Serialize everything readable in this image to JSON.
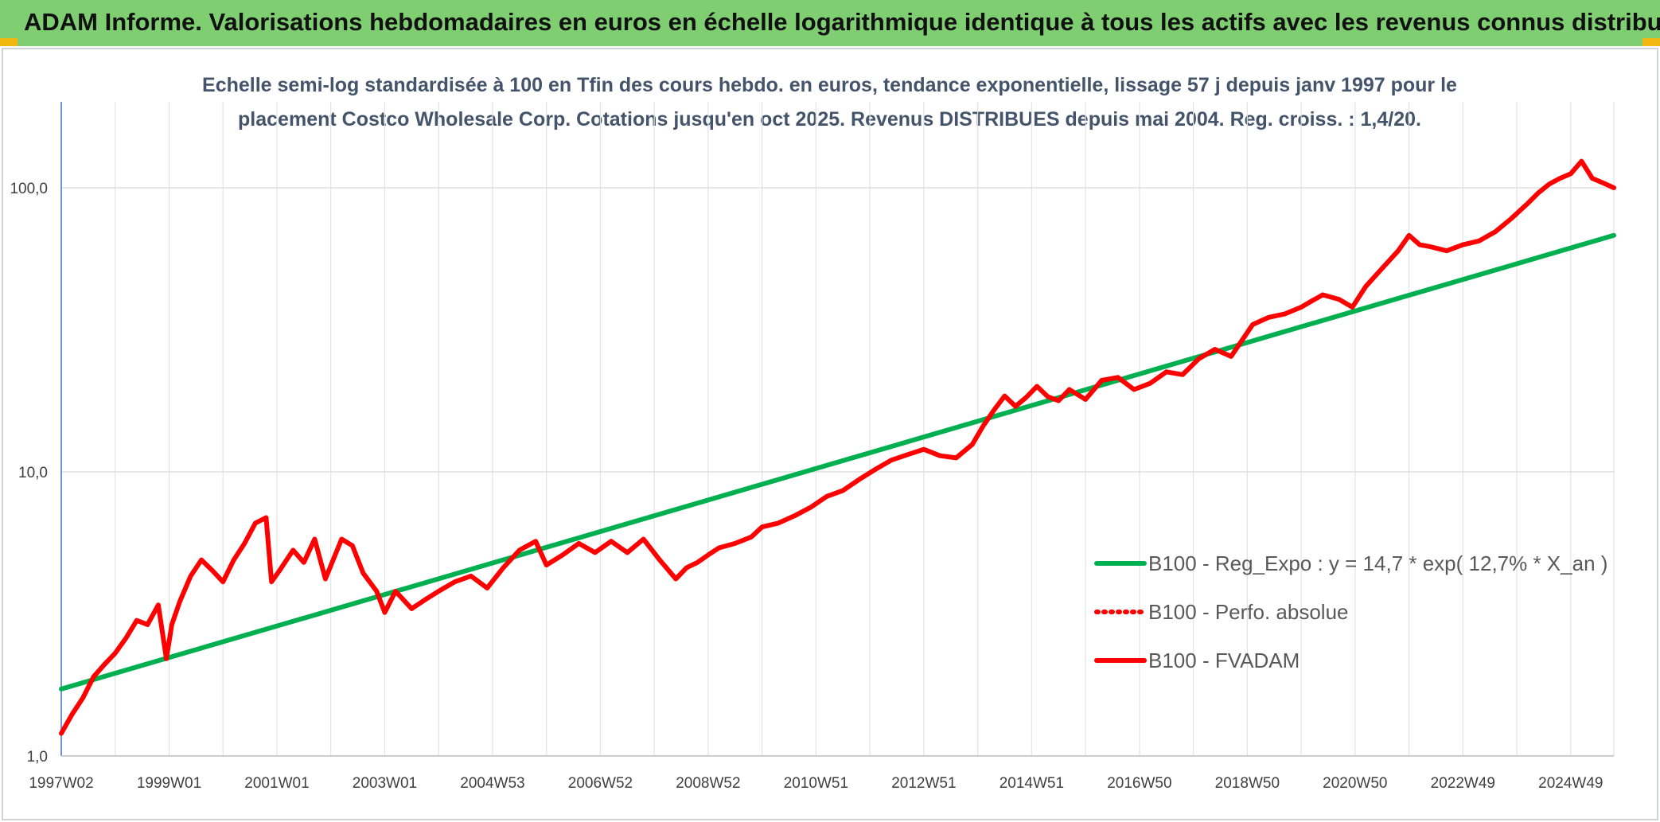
{
  "header": {
    "title": "ADAM Informe. Valorisations hebdomadaires en euros en échelle logarithmique identique à tous les actifs avec les revenus connus distribués"
  },
  "colors": {
    "header_bg": "#7fce72",
    "corner_accent": "#f2b80f",
    "regression_line": "#00b050",
    "fvadam_line": "#ff0000",
    "subtitle_text": "#44546a"
  },
  "chart_data": {
    "type": "line",
    "subtitle_line1": "Echelle semi-log standardisée à 100 en Tfin des cours hebdo. en euros, tendance exponentielle, lissage 57 j depuis janv 1997 pour le",
    "subtitle_line2": "placement Costco Wholesale Corp. Cotations jusqu'en oct 2025. Revenus DISTRIBUES depuis mai 2004. Reg. croiss. : 1,4/20.",
    "y_scale": "log",
    "ylim": [
      1,
      180
    ],
    "y_ticks": [
      {
        "value": 1,
        "label": "1,0"
      },
      {
        "value": 10,
        "label": "10,0"
      },
      {
        "value": 100,
        "label": "100,0"
      }
    ],
    "xlim": [
      1997.0,
      2025.8
    ],
    "x_ticks": [
      {
        "year": 1997.0,
        "label": "1997W02"
      },
      {
        "year": 1999.0,
        "label": "1999W01"
      },
      {
        "year": 2001.0,
        "label": "2001W01"
      },
      {
        "year": 2003.0,
        "label": "2003W01"
      },
      {
        "year": 2005.0,
        "label": "2004W53"
      },
      {
        "year": 2007.0,
        "label": "2006W52"
      },
      {
        "year": 2009.0,
        "label": "2008W52"
      },
      {
        "year": 2011.0,
        "label": "2010W51"
      },
      {
        "year": 2013.0,
        "label": "2012W51"
      },
      {
        "year": 2015.0,
        "label": "2014W51"
      },
      {
        "year": 2017.0,
        "label": "2016W50"
      },
      {
        "year": 2019.0,
        "label": "2018W50"
      },
      {
        "year": 2021.0,
        "label": "2020W50"
      },
      {
        "year": 2023.0,
        "label": "2022W49"
      },
      {
        "year": 2025.0,
        "label": "2024W49"
      }
    ],
    "grid": "vertical-yearly-and-horizontal-decades",
    "legend_position": "right",
    "series": [
      {
        "name": "B100 - Reg_Expo : y = 14,7 * exp( 12,7% *  X_an )",
        "color": "#00b050",
        "style": "solid",
        "x": [
          1997.0,
          2025.8
        ],
        "y": [
          1.72,
          68
        ]
      },
      {
        "name": "B100 - Perfo. absolue",
        "color": "#ff0000",
        "style": "dotted",
        "x": [],
        "y": []
      },
      {
        "name": "B100 - FVADAM",
        "color": "#ff0000",
        "style": "solid",
        "x": [
          1997.0,
          1997.2,
          1997.4,
          1997.6,
          1997.8,
          1998.0,
          1998.2,
          1998.4,
          1998.6,
          1998.8,
          1998.95,
          1999.05,
          1999.2,
          1999.4,
          1999.6,
          1999.8,
          2000.0,
          2000.2,
          2000.4,
          2000.6,
          2000.8,
          2000.9,
          2001.05,
          2001.3,
          2001.5,
          2001.7,
          2001.9,
          2002.2,
          2002.4,
          2002.6,
          2002.85,
          2003.0,
          2003.2,
          2003.5,
          2003.8,
          2004.0,
          2004.3,
          2004.6,
          2004.9,
          2005.2,
          2005.5,
          2005.8,
          2006.0,
          2006.3,
          2006.6,
          2006.9,
          2007.2,
          2007.5,
          2007.8,
          2008.1,
          2008.4,
          2008.6,
          2008.8,
          2009.0,
          2009.2,
          2009.5,
          2009.8,
          2010.0,
          2010.3,
          2010.6,
          2010.9,
          2011.2,
          2011.5,
          2011.8,
          2012.1,
          2012.4,
          2012.7,
          2013.0,
          2013.3,
          2013.6,
          2013.9,
          2014.1,
          2014.3,
          2014.5,
          2014.7,
          2014.9,
          2015.1,
          2015.3,
          2015.5,
          2015.7,
          2016.0,
          2016.3,
          2016.6,
          2016.9,
          2017.2,
          2017.5,
          2017.8,
          2018.1,
          2018.4,
          2018.7,
          2018.9,
          2019.1,
          2019.4,
          2019.7,
          2020.0,
          2020.2,
          2020.4,
          2020.7,
          2020.95,
          2021.2,
          2021.5,
          2021.8,
          2022.0,
          2022.2,
          2022.4,
          2022.7,
          2023.0,
          2023.3,
          2023.6,
          2023.9,
          2024.2,
          2024.4,
          2024.6,
          2024.8,
          2025.0,
          2025.2,
          2025.4,
          2025.6,
          2025.8
        ],
        "y": [
          1.2,
          1.4,
          1.6,
          1.9,
          2.1,
          2.3,
          2.6,
          3.0,
          2.9,
          3.4,
          2.2,
          2.9,
          3.5,
          4.3,
          4.9,
          4.5,
          4.1,
          4.9,
          5.6,
          6.6,
          6.9,
          4.1,
          4.5,
          5.3,
          4.8,
          5.8,
          4.2,
          5.8,
          5.5,
          4.4,
          3.8,
          3.2,
          3.8,
          3.3,
          3.6,
          3.8,
          4.1,
          4.3,
          3.9,
          4.6,
          5.3,
          5.7,
          4.7,
          5.1,
          5.6,
          5.2,
          5.7,
          5.2,
          5.8,
          4.9,
          4.2,
          4.6,
          4.8,
          5.1,
          5.4,
          5.6,
          5.9,
          6.4,
          6.6,
          7.0,
          7.5,
          8.2,
          8.6,
          9.4,
          10.2,
          11.0,
          11.5,
          12.0,
          11.4,
          11.2,
          12.5,
          14.5,
          16.5,
          18.5,
          17.0,
          18.3,
          20.0,
          18.4,
          17.8,
          19.5,
          18.0,
          21.0,
          21.5,
          19.5,
          20.5,
          22.5,
          22.0,
          25.0,
          27.0,
          25.5,
          29.0,
          33.0,
          35.0,
          36.0,
          38.0,
          40.0,
          42.0,
          40.5,
          38.0,
          45.0,
          52.0,
          60.0,
          68.0,
          63.0,
          62.0,
          60.0,
          63.0,
          65.0,
          70.0,
          78.0,
          88.0,
          96.0,
          103.0,
          108.0,
          112.0,
          124.0,
          108.0,
          104.0,
          100.0
        ]
      }
    ]
  }
}
